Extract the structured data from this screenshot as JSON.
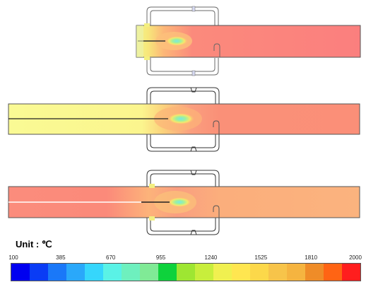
{
  "legend": {
    "unit_label": "Unit : ℃",
    "ticks": [
      "100",
      "385",
      "670",
      "955",
      "1240",
      "1525",
      "1810",
      "2000"
    ],
    "colors": [
      "#0000f0",
      "#0a3cf5",
      "#1a78f8",
      "#2aa8fa",
      "#36d6fc",
      "#5af2e6",
      "#6ef0be",
      "#80ea96",
      "#0ed23c",
      "#9ee632",
      "#c8ee3c",
      "#f0f050",
      "#ffe650",
      "#fcd84a",
      "#f7c44a",
      "#f5b440",
      "#ef8c28",
      "#ff6414",
      "#ff1e1e"
    ]
  },
  "panels": [
    {
      "name": "top"
    },
    {
      "name": "middle"
    },
    {
      "name": "bottom"
    }
  ]
}
